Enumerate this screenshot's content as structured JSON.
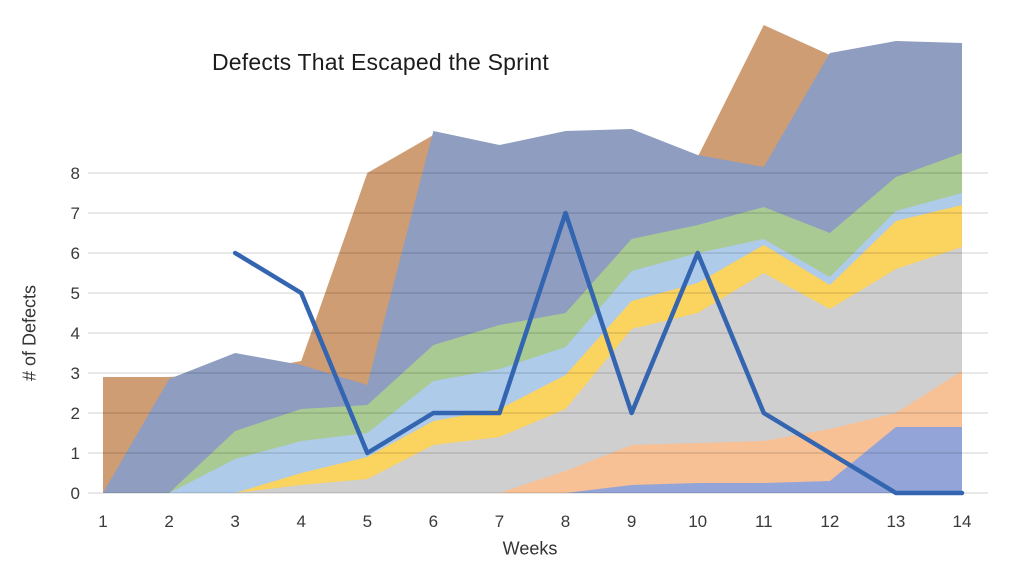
{
  "chart_data": {
    "type": "area",
    "title": "Defects That Escaped the Sprint",
    "xlabel": "Weeks",
    "ylabel": "# of Defects",
    "x": [
      1,
      2,
      3,
      4,
      5,
      6,
      7,
      8,
      9,
      10,
      11,
      12,
      13,
      14
    ],
    "x_tick_labels": [
      "1",
      "2",
      "3",
      "4",
      "5",
      "6",
      "7",
      "8",
      "9",
      "10",
      "11",
      "12",
      "13",
      "14"
    ],
    "y_tick_labels": [
      "0",
      "1",
      "2",
      "3",
      "4",
      "5",
      "6",
      "7",
      "8"
    ],
    "ylim": [
      0,
      8
    ],
    "grid": true,
    "legend": "none",
    "gridline_color": "#d9d9d9",
    "tick_text_color": "#3a3a3a",
    "title_color": "#1c1c1c",
    "series": [
      {
        "name": "area-tan",
        "type": "area",
        "color": "#cf9d74",
        "values": [
          2.9,
          2.9,
          3.0,
          3.3,
          8.0,
          8.95,
          8.3,
          8.3,
          8.35,
          8.4,
          11.7,
          10.95,
          10.5,
          10.5
        ]
      },
      {
        "name": "area-slate",
        "type": "area",
        "color": "#8e9dc0",
        "values": [
          0,
          2.85,
          3.5,
          3.2,
          2.7,
          9.05,
          8.7,
          9.05,
          9.1,
          8.45,
          8.15,
          11.0,
          11.3,
          11.25
        ]
      },
      {
        "name": "area-green",
        "type": "area",
        "color": "#a9ca93",
        "values": [
          0,
          0,
          1.55,
          2.1,
          2.2,
          3.7,
          4.2,
          4.5,
          6.35,
          6.7,
          7.15,
          6.5,
          7.9,
          8.5
        ]
      },
      {
        "name": "area-lightblue",
        "type": "area",
        "color": "#aecbea",
        "values": [
          0,
          0,
          0.85,
          1.3,
          1.5,
          2.8,
          3.1,
          3.65,
          5.55,
          6.0,
          6.35,
          5.4,
          7.05,
          7.5
        ]
      },
      {
        "name": "area-yellow",
        "type": "area",
        "color": "#fbd35f",
        "values": [
          0,
          0,
          0,
          0.5,
          0.9,
          1.8,
          2.1,
          2.95,
          4.8,
          5.25,
          6.2,
          5.2,
          6.8,
          7.2
        ]
      },
      {
        "name": "area-gray",
        "type": "area",
        "color": "#cfcfcf",
        "values": [
          0,
          0,
          0,
          0.2,
          0.35,
          1.2,
          1.4,
          2.1,
          4.1,
          4.5,
          5.5,
          4.6,
          5.6,
          6.15
        ]
      },
      {
        "name": "area-peach",
        "type": "area",
        "color": "#f7c095",
        "values": [
          0,
          0,
          0,
          0,
          0,
          0,
          0,
          0.55,
          1.2,
          1.25,
          1.3,
          1.6,
          2.0,
          3.05
        ]
      },
      {
        "name": "area-periwinkle",
        "type": "area",
        "color": "#93a5d8",
        "values": [
          0,
          0,
          0,
          0,
          0,
          0,
          0,
          0,
          0.2,
          0.25,
          0.25,
          0.3,
          1.65,
          1.65
        ]
      },
      {
        "name": "escaped-defects-line",
        "type": "line",
        "color": "#3465b1",
        "stroke_width": 4.5,
        "values": [
          null,
          null,
          6,
          5,
          1,
          2,
          2,
          7,
          2,
          6,
          2,
          1,
          0,
          0
        ]
      }
    ]
  }
}
